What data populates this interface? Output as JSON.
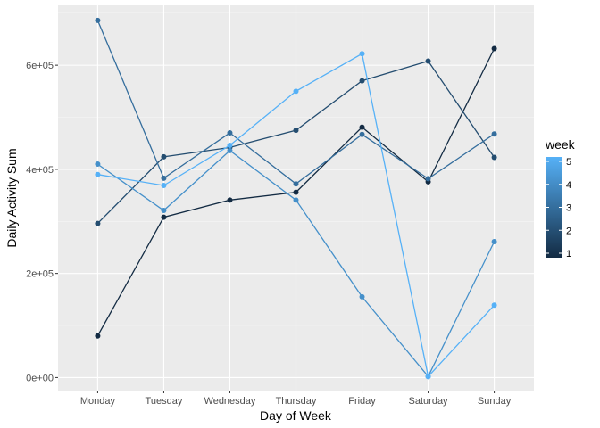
{
  "chart_data": {
    "type": "line",
    "xlabel": "Day of Week",
    "ylabel": "Daily Activity Sum",
    "categories": [
      "Monday",
      "Tuesday",
      "Wednesday",
      "Thursday",
      "Friday",
      "Saturday",
      "Sunday"
    ],
    "ylim": [
      -25000,
      715000
    ],
    "yticks": [
      0,
      200000,
      400000,
      600000
    ],
    "ytick_labels": [
      "0e+00",
      "2e+05",
      "4e+05",
      "6e+05"
    ],
    "grid": true,
    "legend": {
      "title": "week",
      "position": "right",
      "type": "colorbar",
      "range": [
        1,
        5
      ],
      "ticks": [
        "1",
        "2",
        "3",
        "4",
        "5"
      ],
      "colors": {
        "low": "#132B43",
        "high": "#56B1F7"
      }
    },
    "series": [
      {
        "week": 1,
        "values": [
          80000,
          308000,
          341000,
          356000,
          481000,
          376000,
          632000
        ]
      },
      {
        "week": 2,
        "values": [
          296000,
          424000,
          442000,
          475000,
          570000,
          608000,
          423000
        ]
      },
      {
        "week": 3,
        "values": [
          686000,
          383000,
          470000,
          372000,
          467000,
          382000,
          468000
        ]
      },
      {
        "week": 4,
        "values": [
          410000,
          321000,
          436000,
          341000,
          155000,
          2000,
          261000
        ]
      },
      {
        "week": 5,
        "values": [
          390000,
          369000,
          446000,
          550000,
          622000,
          2000,
          139000
        ]
      }
    ]
  }
}
